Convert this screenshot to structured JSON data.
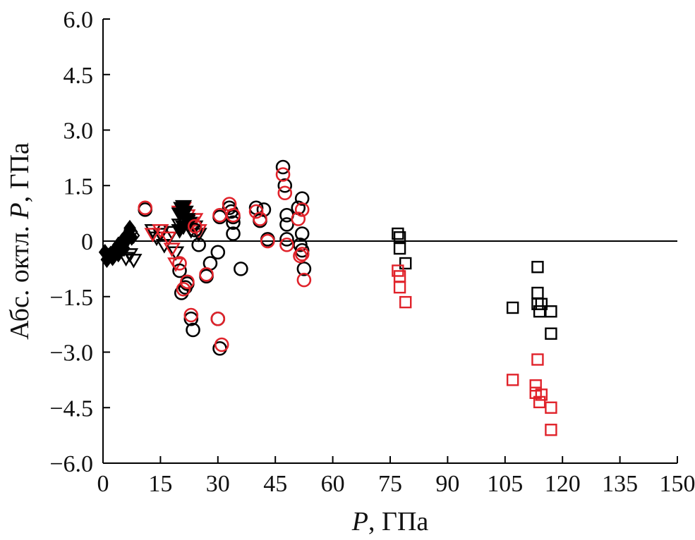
{
  "chart_data": {
    "type": "scatter",
    "title": "",
    "xlabel_italic": "P",
    "xlabel_rest": ", ГПа",
    "ylabel_before": "Абс. октл. ",
    "ylabel_italic": "P",
    "ylabel_after": ", ГПа",
    "xlim": [
      0,
      150
    ],
    "ylim": [
      -6.0,
      6.0
    ],
    "xticks": [
      0,
      15,
      30,
      45,
      60,
      75,
      90,
      105,
      120,
      135,
      150
    ],
    "xtick_labels": [
      "0",
      "15",
      "30",
      "45",
      "60",
      "75",
      "90",
      "105",
      "120",
      "135",
      "150"
    ],
    "yticks": [
      6.0,
      4.5,
      3.0,
      1.5,
      0,
      -1.5,
      -3.0,
      -4.5,
      -6.0
    ],
    "ytick_labels": [
      "6.0",
      "4.5",
      "3.0",
      "1.5",
      "0",
      "−1.5",
      "−3.0",
      "−4.5",
      "−6.0"
    ],
    "reference_line_y": 0,
    "grid": false,
    "colors": {
      "black": "#000000",
      "red": "#e0222a"
    },
    "series": [
      {
        "marker": "diamond",
        "filled": true,
        "color": "black",
        "points": [
          [
            0.5,
            -0.3
          ],
          [
            1,
            -0.5
          ],
          [
            1.5,
            -0.4
          ],
          [
            2,
            -0.35
          ],
          [
            2.5,
            -0.45
          ],
          [
            3,
            -0.25
          ],
          [
            3.5,
            -0.2
          ],
          [
            4,
            -0.35
          ],
          [
            4.5,
            -0.1
          ],
          [
            5,
            0.0
          ],
          [
            5.5,
            -0.2
          ],
          [
            6,
            0.05
          ],
          [
            6.5,
            0.2
          ],
          [
            7,
            0.3
          ],
          [
            7.5,
            0.1
          ]
        ]
      },
      {
        "marker": "diamond",
        "filled": false,
        "color": "black",
        "points": [
          [
            4,
            -0.1
          ],
          [
            5,
            0.0
          ],
          [
            6,
            0.1
          ],
          [
            6.5,
            0.2
          ],
          [
            7,
            0.35
          ],
          [
            7.5,
            0.25
          ],
          [
            8,
            0.15
          ]
        ]
      },
      {
        "marker": "triangle-down",
        "filled": false,
        "color": "black",
        "points": [
          [
            5,
            -0.2
          ],
          [
            6,
            -0.45
          ],
          [
            7,
            -0.35
          ],
          [
            8,
            -0.5
          ],
          [
            13,
            0.3
          ],
          [
            14,
            0.1
          ],
          [
            15,
            0.2
          ],
          [
            16,
            -0.1
          ],
          [
            18,
            0.25
          ],
          [
            19,
            -0.3
          ],
          [
            20,
            0.45
          ],
          [
            21,
            0.6
          ],
          [
            22,
            0.55
          ],
          [
            23,
            0.3
          ],
          [
            24,
            0.4
          ],
          [
            25,
            0.2
          ]
        ]
      },
      {
        "marker": "triangle-down",
        "filled": false,
        "color": "red",
        "points": [
          [
            13,
            0.2
          ],
          [
            15,
            0.3
          ],
          [
            17,
            0.1
          ],
          [
            18,
            -0.2
          ],
          [
            19,
            -0.6
          ],
          [
            20,
            0.8
          ],
          [
            21,
            0.9
          ],
          [
            22,
            0.7
          ],
          [
            23,
            0.5
          ],
          [
            24,
            0.6
          ],
          [
            25,
            0.3
          ]
        ]
      },
      {
        "marker": "triangle-down",
        "filled": true,
        "color": "black",
        "points": [
          [
            20,
            0.75
          ],
          [
            20.5,
            0.9
          ],
          [
            21,
            0.95
          ],
          [
            21.5,
            0.8
          ],
          [
            22,
            0.6
          ],
          [
            22.5,
            0.5
          ],
          [
            21,
            0.4
          ],
          [
            20,
            0.3
          ]
        ]
      },
      {
        "marker": "circle",
        "filled": false,
        "color": "black",
        "points": [
          [
            11,
            0.85
          ],
          [
            20,
            -0.8
          ],
          [
            20.5,
            -1.4
          ],
          [
            21.5,
            -1.25
          ],
          [
            22,
            -1.15
          ],
          [
            23,
            -2.1
          ],
          [
            23.5,
            -2.4
          ],
          [
            24,
            0.3
          ],
          [
            25,
            -0.1
          ],
          [
            27,
            -0.95
          ],
          [
            28,
            -0.6
          ],
          [
            30,
            -0.3
          ],
          [
            30,
            -2.1
          ],
          [
            30.5,
            0.65
          ],
          [
            30.5,
            -2.9
          ],
          [
            33,
            0.9
          ],
          [
            33.5,
            0.8
          ],
          [
            34,
            0.65
          ],
          [
            34,
            0.5
          ],
          [
            34,
            0.2
          ],
          [
            36,
            -0.75
          ],
          [
            40,
            0.9
          ],
          [
            41,
            0.55
          ],
          [
            42,
            0.85
          ],
          [
            43,
            0.05
          ],
          [
            47,
            2.0
          ],
          [
            47.5,
            1.5
          ],
          [
            48,
            0.7
          ],
          [
            48,
            0.45
          ],
          [
            48,
            0.05
          ],
          [
            51,
            0.9
          ],
          [
            51.5,
            -0.1
          ],
          [
            52,
            0.2
          ],
          [
            52,
            -0.25
          ],
          [
            52,
            1.15
          ],
          [
            52.5,
            -0.75
          ]
        ]
      },
      {
        "marker": "circle",
        "filled": false,
        "color": "red",
        "points": [
          [
            11,
            0.9
          ],
          [
            20,
            -0.6
          ],
          [
            21,
            -1.3
          ],
          [
            22,
            -1.1
          ],
          [
            23,
            -2.0
          ],
          [
            24,
            0.4
          ],
          [
            27,
            -0.9
          ],
          [
            30.5,
            0.7
          ],
          [
            31,
            -2.8
          ],
          [
            30,
            -2.1
          ],
          [
            33,
            1.0
          ],
          [
            34,
            0.7
          ],
          [
            40,
            0.8
          ],
          [
            41,
            0.6
          ],
          [
            43,
            0.0
          ],
          [
            47,
            1.8
          ],
          [
            47.5,
            1.3
          ],
          [
            48,
            -0.1
          ],
          [
            51,
            0.6
          ],
          [
            51.5,
            -0.4
          ],
          [
            52,
            0.85
          ],
          [
            52.5,
            -1.05
          ],
          [
            52,
            -0.35
          ]
        ]
      },
      {
        "marker": "square",
        "filled": false,
        "color": "black",
        "points": [
          [
            77,
            0.2
          ],
          [
            77.5,
            0.1
          ],
          [
            77.5,
            -0.2
          ],
          [
            79,
            -0.6
          ],
          [
            107,
            -1.8
          ],
          [
            113.5,
            -0.7
          ],
          [
            113.5,
            -1.4
          ],
          [
            113.5,
            -1.7
          ],
          [
            114,
            -1.9
          ],
          [
            114.5,
            -1.7
          ],
          [
            117,
            -1.9
          ],
          [
            117,
            -2.5
          ]
        ]
      },
      {
        "marker": "square",
        "filled": false,
        "color": "red",
        "points": [
          [
            77,
            -0.8
          ],
          [
            77.5,
            -0.95
          ],
          [
            77.5,
            -1.25
          ],
          [
            79,
            -1.65
          ],
          [
            107,
            -3.75
          ],
          [
            113.5,
            -3.2
          ],
          [
            113,
            -3.9
          ],
          [
            113,
            -4.1
          ],
          [
            114,
            -4.35
          ],
          [
            114.5,
            -4.15
          ],
          [
            117,
            -4.5
          ],
          [
            117,
            -5.1
          ]
        ]
      }
    ]
  }
}
